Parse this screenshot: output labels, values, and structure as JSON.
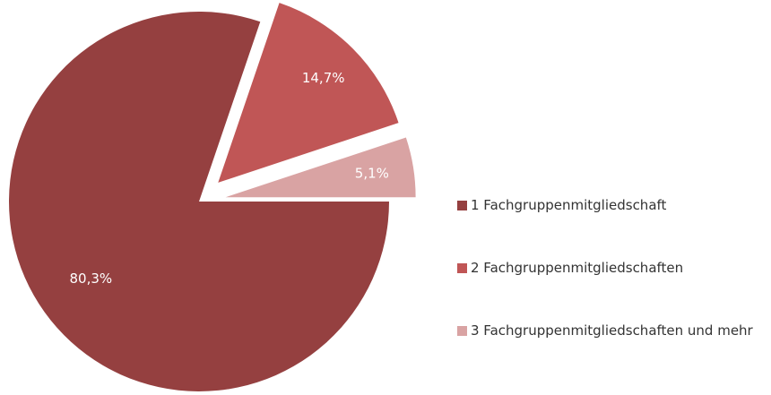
{
  "chart_data": {
    "type": "pie",
    "categories": [
      "1 Fachgruppenmitgliedschaft",
      "2 Fachgruppenmitgliedschaften",
      "3 Fachgruppenmitgliedschaften und mehr"
    ],
    "values": [
      80.3,
      14.7,
      5.1
    ],
    "value_labels": [
      "80,3%",
      "14,7%",
      "5,1%"
    ],
    "colors": [
      "#954040",
      "#c05656",
      "#d9a3a3"
    ],
    "legend": "right"
  }
}
